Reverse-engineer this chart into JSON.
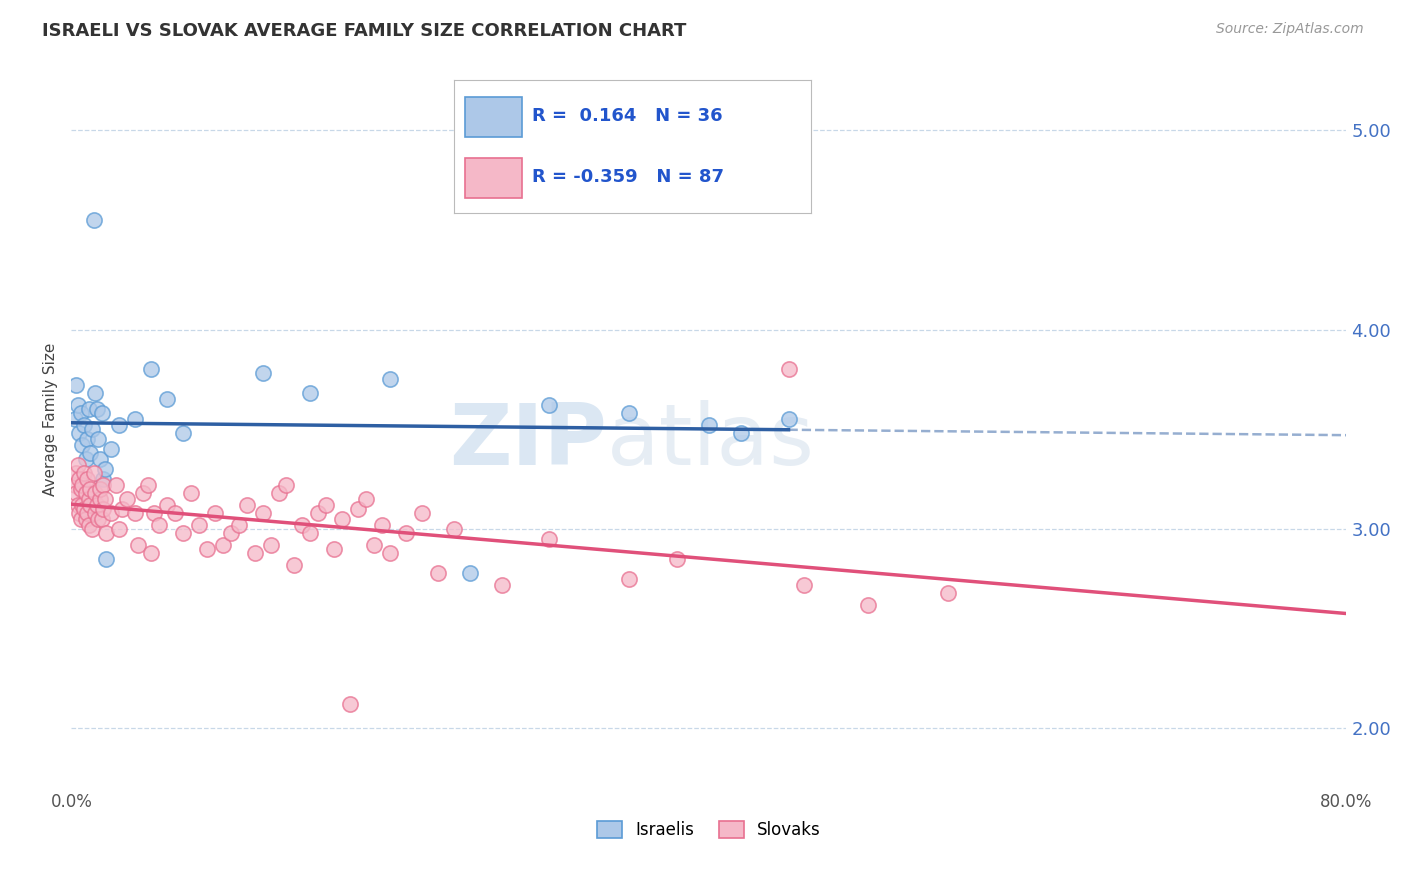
{
  "title": "ISRAELI VS SLOVAK AVERAGE FAMILY SIZE CORRELATION CHART",
  "source": "Source: ZipAtlas.com",
  "ylabel": "Average Family Size",
  "xlim": [
    0.0,
    0.8
  ],
  "ylim": [
    1.7,
    5.4
  ],
  "yticks": [
    2.0,
    3.0,
    4.0,
    5.0
  ],
  "xticks": [
    0.0,
    0.8
  ],
  "xtick_labels": [
    "0.0%",
    "80.0%"
  ],
  "right_ytick_labels": [
    "2.00",
    "3.00",
    "4.00",
    "5.00"
  ],
  "israeli_fill": "#adc8e8",
  "israeli_edge": "#5b9bd5",
  "slovak_fill": "#f5b8c8",
  "slovak_edge": "#e87090",
  "israeli_line_color": "#2e5fa3",
  "slovak_line_color": "#e0507a",
  "r_israeli": 0.164,
  "n_israeli": 36,
  "r_slovak": -0.359,
  "n_slovak": 87,
  "watermark_zip": "ZIP",
  "watermark_atlas": "atlas",
  "background_color": "#ffffff",
  "grid_color": "#c8d8e8",
  "israeli_points": [
    [
      0.002,
      3.55
    ],
    [
      0.003,
      3.72
    ],
    [
      0.004,
      3.62
    ],
    [
      0.005,
      3.48
    ],
    [
      0.006,
      3.58
    ],
    [
      0.007,
      3.42
    ],
    [
      0.008,
      3.52
    ],
    [
      0.009,
      3.35
    ],
    [
      0.01,
      3.45
    ],
    [
      0.011,
      3.6
    ],
    [
      0.012,
      3.38
    ],
    [
      0.013,
      3.5
    ],
    [
      0.014,
      4.55
    ],
    [
      0.015,
      3.68
    ],
    [
      0.016,
      3.6
    ],
    [
      0.017,
      3.45
    ],
    [
      0.018,
      3.35
    ],
    [
      0.019,
      3.58
    ],
    [
      0.02,
      3.25
    ],
    [
      0.021,
      3.3
    ],
    [
      0.022,
      2.85
    ],
    [
      0.025,
      3.4
    ],
    [
      0.03,
      3.52
    ],
    [
      0.04,
      3.55
    ],
    [
      0.05,
      3.8
    ],
    [
      0.06,
      3.65
    ],
    [
      0.07,
      3.48
    ],
    [
      0.12,
      3.78
    ],
    [
      0.15,
      3.68
    ],
    [
      0.2,
      3.75
    ],
    [
      0.25,
      2.78
    ],
    [
      0.3,
      3.62
    ],
    [
      0.35,
      3.58
    ],
    [
      0.4,
      3.52
    ],
    [
      0.42,
      3.48
    ],
    [
      0.45,
      3.55
    ]
  ],
  "slovak_points": [
    [
      0.002,
      3.22
    ],
    [
      0.003,
      3.28
    ],
    [
      0.003,
      3.18
    ],
    [
      0.004,
      3.32
    ],
    [
      0.004,
      3.12
    ],
    [
      0.005,
      3.25
    ],
    [
      0.005,
      3.08
    ],
    [
      0.006,
      3.2
    ],
    [
      0.006,
      3.05
    ],
    [
      0.007,
      3.22
    ],
    [
      0.007,
      3.12
    ],
    [
      0.008,
      3.28
    ],
    [
      0.008,
      3.1
    ],
    [
      0.009,
      3.18
    ],
    [
      0.009,
      3.05
    ],
    [
      0.01,
      3.25
    ],
    [
      0.01,
      3.08
    ],
    [
      0.011,
      3.15
    ],
    [
      0.011,
      3.02
    ],
    [
      0.012,
      3.2
    ],
    [
      0.012,
      3.12
    ],
    [
      0.013,
      3.0
    ],
    [
      0.014,
      3.28
    ],
    [
      0.015,
      3.08
    ],
    [
      0.015,
      3.18
    ],
    [
      0.016,
      3.12
    ],
    [
      0.017,
      3.05
    ],
    [
      0.018,
      3.15
    ],
    [
      0.018,
      3.2
    ],
    [
      0.019,
      3.05
    ],
    [
      0.02,
      3.1
    ],
    [
      0.02,
      3.22
    ],
    [
      0.021,
      3.15
    ],
    [
      0.022,
      2.98
    ],
    [
      0.025,
      3.08
    ],
    [
      0.028,
      3.22
    ],
    [
      0.03,
      3.0
    ],
    [
      0.032,
      3.1
    ],
    [
      0.035,
      3.15
    ],
    [
      0.04,
      3.08
    ],
    [
      0.042,
      2.92
    ],
    [
      0.045,
      3.18
    ],
    [
      0.048,
      3.22
    ],
    [
      0.05,
      2.88
    ],
    [
      0.052,
      3.08
    ],
    [
      0.055,
      3.02
    ],
    [
      0.06,
      3.12
    ],
    [
      0.065,
      3.08
    ],
    [
      0.07,
      2.98
    ],
    [
      0.075,
      3.18
    ],
    [
      0.08,
      3.02
    ],
    [
      0.085,
      2.9
    ],
    [
      0.09,
      3.08
    ],
    [
      0.095,
      2.92
    ],
    [
      0.1,
      2.98
    ],
    [
      0.105,
      3.02
    ],
    [
      0.11,
      3.12
    ],
    [
      0.115,
      2.88
    ],
    [
      0.12,
      3.08
    ],
    [
      0.125,
      2.92
    ],
    [
      0.13,
      3.18
    ],
    [
      0.135,
      3.22
    ],
    [
      0.14,
      2.82
    ],
    [
      0.145,
      3.02
    ],
    [
      0.15,
      2.98
    ],
    [
      0.155,
      3.08
    ],
    [
      0.16,
      3.12
    ],
    [
      0.165,
      2.9
    ],
    [
      0.17,
      3.05
    ],
    [
      0.175,
      2.12
    ],
    [
      0.18,
      3.1
    ],
    [
      0.185,
      3.15
    ],
    [
      0.19,
      2.92
    ],
    [
      0.195,
      3.02
    ],
    [
      0.2,
      2.88
    ],
    [
      0.21,
      2.98
    ],
    [
      0.22,
      3.08
    ],
    [
      0.23,
      2.78
    ],
    [
      0.24,
      3.0
    ],
    [
      0.27,
      2.72
    ],
    [
      0.3,
      2.95
    ],
    [
      0.35,
      2.75
    ],
    [
      0.38,
      2.85
    ],
    [
      0.45,
      3.8
    ],
    [
      0.46,
      2.72
    ],
    [
      0.5,
      2.62
    ],
    [
      0.55,
      2.68
    ]
  ]
}
